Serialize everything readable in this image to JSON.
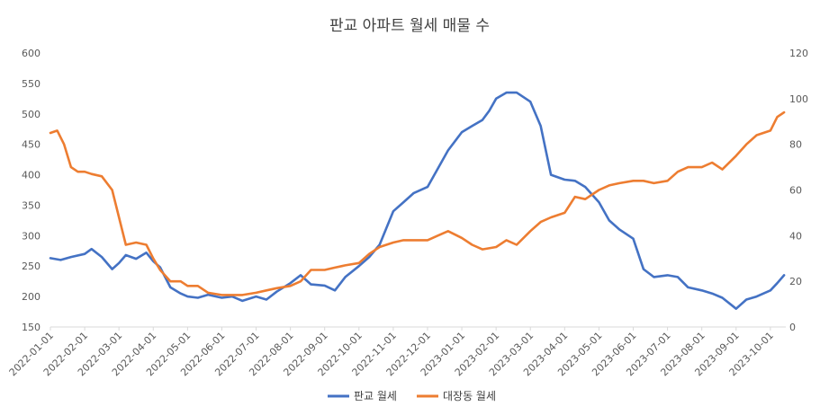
{
  "chart_data": {
    "type": "line",
    "title": "판교 아파트 월세 매물 수",
    "xlabel": "",
    "ylabel": "",
    "categories": [
      "2022-01-01",
      "2022-02-01",
      "2022-03-01",
      "2022-04-01",
      "2022-05-01",
      "2022-06-01",
      "2022-07-01",
      "2022-08-01",
      "2022-09-01",
      "2022-10-01",
      "2022-11-01",
      "2022-12-01",
      "2023-01-01",
      "2023-02-01",
      "2023-03-01",
      "2023-04-01",
      "2023-05-01",
      "2023-06-01",
      "2023-07-01",
      "2023-08-01",
      "2023-09-01",
      "2023-10-01"
    ],
    "left_axis": {
      "ticks": [
        "150",
        "200",
        "250",
        "300",
        "350",
        "400",
        "450",
        "500",
        "550",
        "600"
      ],
      "ylim": [
        150,
        600
      ]
    },
    "right_axis": {
      "ticks": [
        "0",
        "20",
        "40",
        "60",
        "80",
        "100",
        "120"
      ],
      "ylim": [
        0,
        120
      ]
    },
    "x_span_months": 21.45,
    "series": [
      {
        "name": "판교 월세",
        "axis": "left",
        "color": "#4472C4",
        "x": [
          0,
          0.3,
          0.6,
          1.0,
          1.2,
          1.5,
          1.8,
          2.0,
          2.2,
          2.5,
          2.8,
          3.0,
          3.2,
          3.5,
          3.8,
          4.0,
          4.3,
          4.6,
          5.0,
          5.3,
          5.6,
          6.0,
          6.3,
          6.6,
          7.0,
          7.3,
          7.6,
          8.0,
          8.3,
          8.6,
          9.0,
          9.3,
          9.6,
          10.0,
          10.3,
          10.6,
          11.0,
          11.3,
          11.6,
          12.0,
          12.3,
          12.6,
          12.8,
          13.0,
          13.3,
          13.6,
          14.0,
          14.3,
          14.6,
          15.0,
          15.3,
          15.6,
          16.0,
          16.3,
          16.6,
          17.0,
          17.3,
          17.6,
          18.0,
          18.3,
          18.6,
          19.0,
          19.3,
          19.6,
          20.0,
          20.3,
          20.6,
          21.0,
          21.2,
          21.4
        ],
        "values": [
          263,
          260,
          265,
          270,
          278,
          265,
          245,
          255,
          268,
          262,
          272,
          258,
          248,
          215,
          205,
          200,
          198,
          203,
          198,
          200,
          193,
          200,
          195,
          208,
          222,
          235,
          220,
          218,
          210,
          232,
          250,
          265,
          285,
          340,
          355,
          370,
          380,
          410,
          440,
          470,
          480,
          490,
          505,
          525,
          535,
          535,
          520,
          480,
          400,
          392,
          390,
          380,
          355,
          325,
          310,
          295,
          245,
          232,
          235,
          232,
          215,
          210,
          205,
          198,
          180,
          195,
          200,
          210,
          222,
          235
        ],
        "labels": []
      },
      {
        "name": "대장동 월세",
        "axis": "right",
        "color": "#ED7D31",
        "x": [
          0,
          0.2,
          0.4,
          0.6,
          0.8,
          1.0,
          1.2,
          1.5,
          1.8,
          2.0,
          2.2,
          2.5,
          2.8,
          3.0,
          3.2,
          3.5,
          3.8,
          4.0,
          4.3,
          4.6,
          5.0,
          5.3,
          5.6,
          6.0,
          6.3,
          6.6,
          7.0,
          7.3,
          7.6,
          8.0,
          8.3,
          8.6,
          9.0,
          9.3,
          9.6,
          10.0,
          10.3,
          10.6,
          11.0,
          11.3,
          11.6,
          12.0,
          12.3,
          12.6,
          13.0,
          13.3,
          13.6,
          14.0,
          14.3,
          14.6,
          15.0,
          15.3,
          15.6,
          16.0,
          16.3,
          16.6,
          17.0,
          17.3,
          17.6,
          18.0,
          18.3,
          18.6,
          19.0,
          19.3,
          19.6,
          20.0,
          20.3,
          20.6,
          21.0,
          21.2,
          21.4
        ],
        "values": [
          85,
          86,
          80,
          70,
          68,
          68,
          67,
          66,
          60,
          48,
          36,
          37,
          36,
          30,
          25,
          20,
          20,
          18,
          18,
          15,
          14,
          14,
          14,
          15,
          16,
          17,
          18,
          20,
          25,
          25,
          26,
          27,
          28,
          32,
          35,
          37,
          38,
          38,
          38,
          40,
          42,
          39,
          36,
          34,
          35,
          38,
          36,
          42,
          46,
          48,
          50,
          57,
          56,
          60,
          62,
          63,
          64,
          64,
          63,
          64,
          68,
          70,
          70,
          72,
          69,
          75,
          80,
          84,
          86,
          92,
          94
        ],
        "labels": []
      }
    ],
    "legend": [
      "판교 월세",
      "대장동 월세"
    ],
    "legend_position": "bottom",
    "grid": false
  }
}
